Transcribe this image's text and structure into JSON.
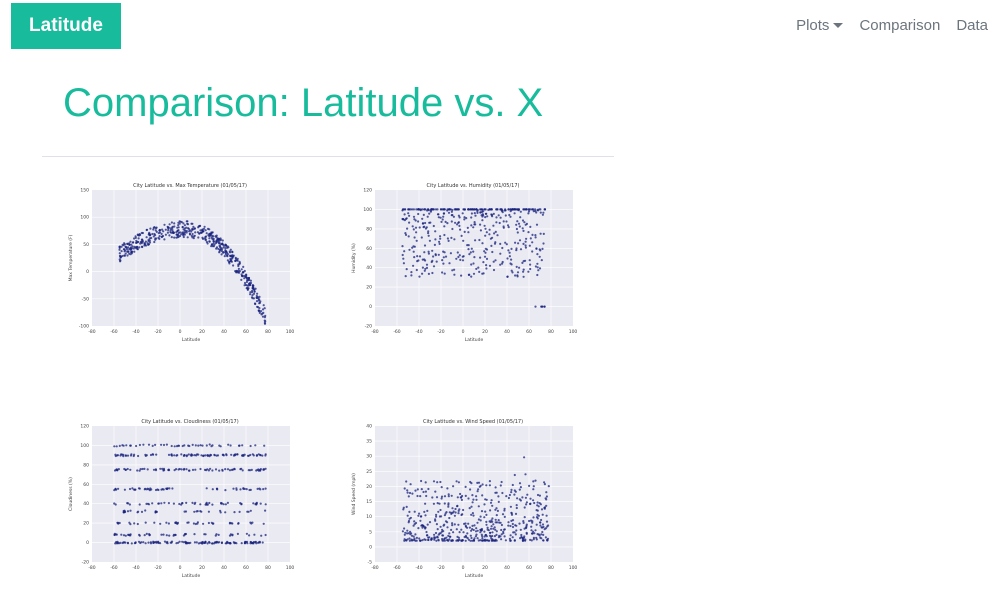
{
  "navbar": {
    "brand": "Latitude",
    "links": [
      {
        "label": "Plots",
        "dropdown": true
      },
      {
        "label": "Comparison",
        "dropdown": false
      },
      {
        "label": "Data",
        "dropdown": false
      }
    ]
  },
  "page": {
    "title": "Comparison: Latitude vs. X"
  },
  "theme": {
    "accent": "#18bc9c",
    "nav_text": "#6c757d",
    "plot_bg": "#eaeaf2",
    "marker": "#1a237e"
  },
  "plots": [
    {
      "title": "City Latitude vs. Max Temperature (01/05/17)",
      "xlabel": "Latitude",
      "ylabel": "Max Temperature (F)",
      "xticks": [
        "-80",
        "-60",
        "-40",
        "-20",
        "0",
        "20",
        "40",
        "60",
        "80",
        "100"
      ],
      "yticks": [
        "150",
        "100",
        "50",
        "0",
        "-50",
        "-100"
      ]
    },
    {
      "title": "City Latitude vs. Humidity (01/05/17)",
      "xlabel": "Latitude",
      "ylabel": "Humidity (%)",
      "xticks": [
        "-80",
        "-60",
        "-40",
        "-20",
        "0",
        "20",
        "40",
        "60",
        "80",
        "100"
      ],
      "yticks": [
        "120",
        "100",
        "80",
        "60",
        "40",
        "20",
        "0",
        "-20"
      ]
    },
    {
      "title": "City Latitude vs. Cloudiness (01/05/17)",
      "xlabel": "Latitude",
      "ylabel": "Cloudiness (%)",
      "xticks": [
        "-80",
        "-60",
        "-40",
        "-20",
        "0",
        "20",
        "40",
        "60",
        "80",
        "100"
      ],
      "yticks": [
        "120",
        "100",
        "80",
        "60",
        "40",
        "20",
        "0",
        "-20"
      ]
    },
    {
      "title": "City Latitude vs. Wind Speed (01/05/17)",
      "xlabel": "Latitude",
      "ylabel": "Wind Speed (mph)",
      "xticks": [
        "-80",
        "-60",
        "-40",
        "-20",
        "0",
        "20",
        "40",
        "60",
        "80",
        "100"
      ],
      "yticks": [
        "40",
        "35",
        "30",
        "25",
        "20",
        "15",
        "10",
        "5",
        "0",
        "-5"
      ]
    }
  ]
}
